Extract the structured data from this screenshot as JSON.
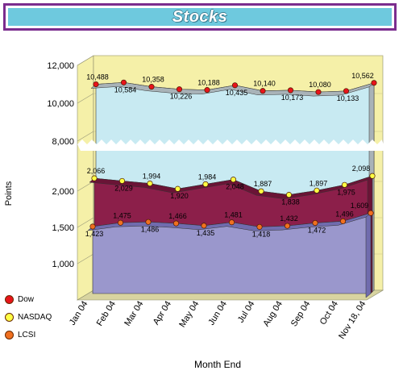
{
  "chart_data": {
    "type": "area",
    "title": "Stocks",
    "xlabel": "Month End",
    "ylabel": "Points",
    "categories": [
      "Jan 04",
      "Feb 04",
      "Mar 04",
      "Apr 04",
      "May 04",
      "Jun 04",
      "Jul 04",
      "Aug 04",
      "Sep 04",
      "Oct 04",
      "Nov 18, 04"
    ],
    "y_ticks": [
      "1,000",
      "1,500",
      "2,000",
      "8,000",
      "10,000",
      "12,000"
    ],
    "axis_break": "between 2,000 and 8,000",
    "series": [
      {
        "name": "Dow",
        "color": "#e8141a",
        "fill": "#c8eaf2",
        "values": [
          10488,
          10584,
          10358,
          10226,
          10188,
          10435,
          10140,
          10173,
          10080,
          10133,
          10562
        ]
      },
      {
        "name": "NASDAQ",
        "color": "#ffff44",
        "fill": "#8c1f4a",
        "values": [
          2066,
          2029,
          1994,
          1920,
          1984,
          2048,
          1887,
          1838,
          1897,
          1975,
          2098
        ]
      },
      {
        "name": "LCSI",
        "color": "#f07020",
        "fill": "#9a97cc",
        "values": [
          1423,
          1475,
          1486,
          1466,
          1435,
          1481,
          1418,
          1432,
          1472,
          1496,
          1609
        ]
      }
    ],
    "labels": {
      "Dow": [
        "10,488",
        "10,584",
        "10,358",
        "10,226",
        "10,188",
        "10,435",
        "10,140",
        "10,173",
        "10,080",
        "10,133",
        "10,562"
      ],
      "NASDAQ": [
        "2,066",
        "2,029",
        "1,994",
        "1,920",
        "1,984",
        "2,048",
        "1,887",
        "1,838",
        "1,897",
        "1,975",
        "2,098"
      ],
      "LCSI": [
        "1,423",
        "1,475",
        "1,486",
        "1,466",
        "1,435",
        "1,481",
        "1,418",
        "1,432",
        "1,472",
        "1,496",
        "1,609"
      ]
    },
    "legend_position": "bottom-left",
    "wall_color": "#f5f0a8"
  }
}
